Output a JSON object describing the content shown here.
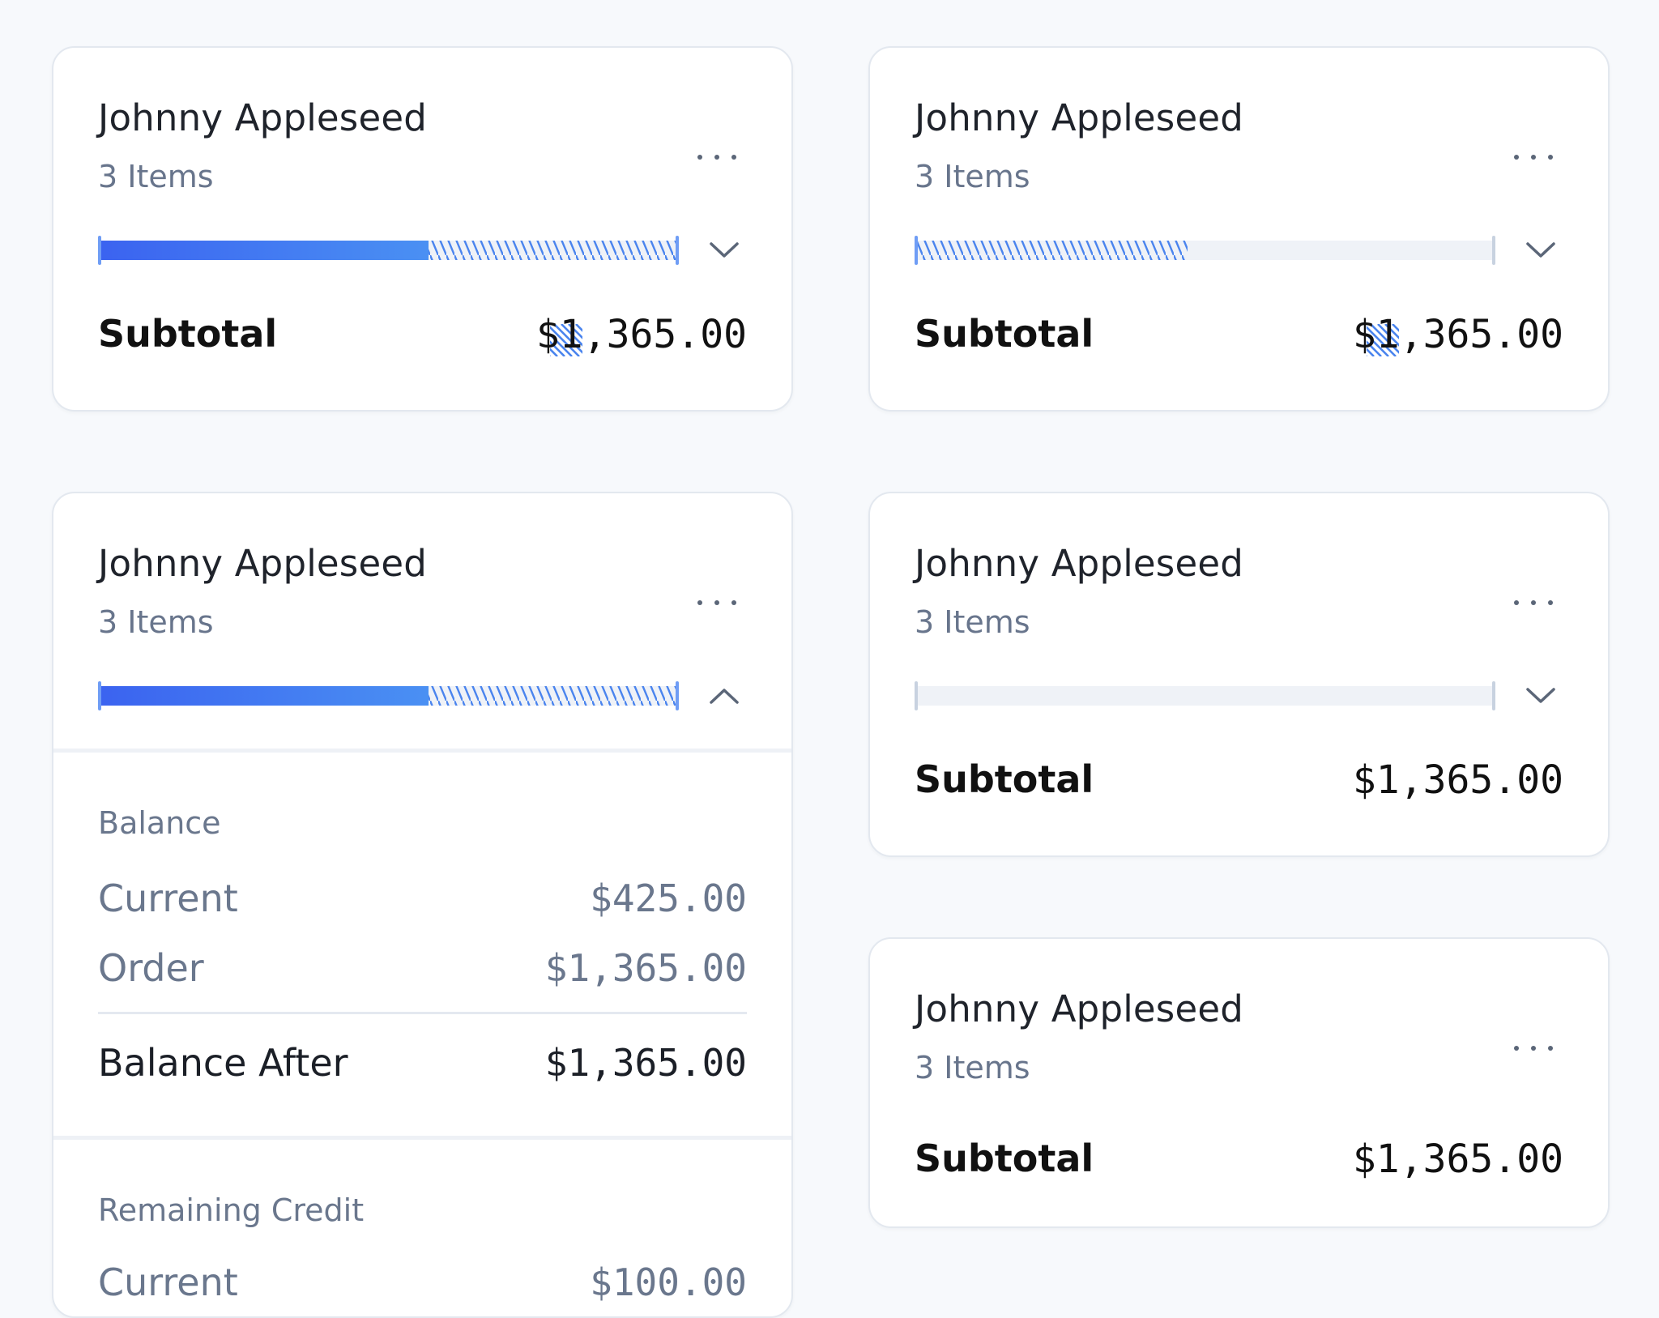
{
  "colors": {
    "accent_start": "#3b63f0",
    "accent_end": "#4a90f3",
    "hatch": "#4a84ee",
    "track": "#eff2f7",
    "muted_text": "#68758c"
  },
  "icons": {
    "more": "more-horizontal-icon",
    "expand": "chevron-down-icon",
    "collapse": "chevron-up-icon",
    "pending": "hatch-pattern-icon"
  },
  "cards": [
    {
      "name": "Johnny Appleseed",
      "items": "3 Items",
      "progress_paid_fraction": 0.57,
      "progress_pending_fraction": 0.43,
      "subtotal_label": "Subtotal",
      "subtotal_value": "$1,365.00",
      "expanded": false
    },
    {
      "name": "Johnny Appleseed",
      "items": "3 Items",
      "progress_paid_fraction": 0,
      "progress_pending_fraction": 0.47,
      "subtotal_label": "Subtotal",
      "subtotal_value": "$1,365.00",
      "expanded": false
    },
    {
      "name": "Johnny Appleseed",
      "items": "3 Items",
      "progress_paid_fraction": 0.57,
      "progress_pending_fraction": 0.43,
      "expanded": true,
      "balance": {
        "title": "Balance",
        "current_label": "Current",
        "current_value": "$425.00",
        "order_label": "Order",
        "order_value": "$1,365.00",
        "after_label": "Balance After",
        "after_value": "$1,365.00"
      },
      "remaining_credit": {
        "title": "Remaining Credit",
        "current_label": "Current",
        "current_value": "$100.00"
      }
    },
    {
      "name": "Johnny Appleseed",
      "items": "3 Items",
      "progress_paid_fraction": 0,
      "progress_pending_fraction": 0,
      "subtotal_label": "Subtotal",
      "subtotal_value": "$1,365.00",
      "expanded": false
    },
    {
      "name": "Johnny Appleseed",
      "items": "3 Items",
      "subtotal_label": "Subtotal",
      "subtotal_value": "$1,365.00"
    }
  ]
}
